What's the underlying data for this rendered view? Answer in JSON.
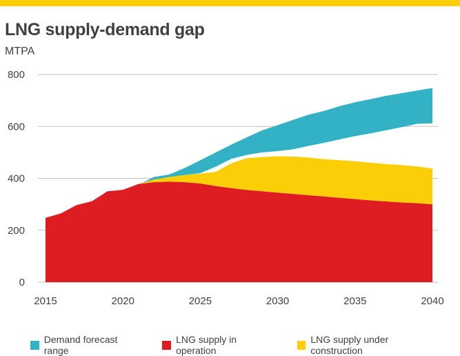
{
  "header": {
    "title": "LNG supply-demand gap",
    "unit": "MTPA"
  },
  "colors": {
    "accent_bar": "#fbce07",
    "demand": "#33b2c5",
    "operation": "#dd1d21",
    "construction": "#fbce07",
    "text": "#404040",
    "grid": "#bfbfbf"
  },
  "chart_data": {
    "type": "area",
    "ylabel": "MTPA",
    "xlim": [
      2015,
      2040
    ],
    "ylim": [
      0,
      800
    ],
    "x_ticks": [
      2015,
      2020,
      2025,
      2030,
      2035,
      2040
    ],
    "y_ticks": [
      0,
      200,
      400,
      600,
      800
    ],
    "grid": "horizontal",
    "legend_position": "bottom",
    "x": [
      2015,
      2016,
      2017,
      2018,
      2019,
      2020,
      2021,
      2022,
      2023,
      2024,
      2025,
      2026,
      2027,
      2028,
      2029,
      2030,
      2031,
      2032,
      2033,
      2034,
      2035,
      2036,
      2037,
      2038,
      2039,
      2040
    ],
    "series": [
      {
        "name": "Demand forecast range",
        "color_key": "demand",
        "lower": [
          null,
          null,
          null,
          null,
          null,
          null,
          null,
          null,
          null,
          null,
          420,
          445,
          475,
          490,
          500,
          505,
          512,
          525,
          537,
          550,
          563,
          573,
          585,
          597,
          610,
          612
        ],
        "upper": [
          null,
          null,
          null,
          null,
          null,
          null,
          375,
          405,
          415,
          440,
          470,
          500,
          530,
          558,
          585,
          605,
          625,
          645,
          660,
          678,
          693,
          705,
          718,
          728,
          738,
          748
        ]
      },
      {
        "name": "LNG supply in operation",
        "color_key": "operation",
        "values": [
          248,
          265,
          297,
          312,
          350,
          356,
          378,
          385,
          387,
          385,
          380,
          370,
          362,
          355,
          350,
          345,
          340,
          335,
          330,
          325,
          320,
          315,
          311,
          307,
          304,
          300
        ]
      },
      {
        "name": "LNG supply under construction",
        "color_key": "construction",
        "values": [
          null,
          null,
          null,
          null,
          null,
          null,
          378,
          395,
          405,
          413,
          418,
          425,
          458,
          478,
          482,
          485,
          484,
          480,
          474,
          470,
          466,
          460,
          455,
          451,
          446,
          438
        ]
      }
    ]
  },
  "legend": [
    {
      "label": "Demand forecast range",
      "color_key": "demand"
    },
    {
      "label": "LNG supply in operation",
      "color_key": "operation"
    },
    {
      "label": "LNG supply under construction",
      "color_key": "construction"
    }
  ]
}
